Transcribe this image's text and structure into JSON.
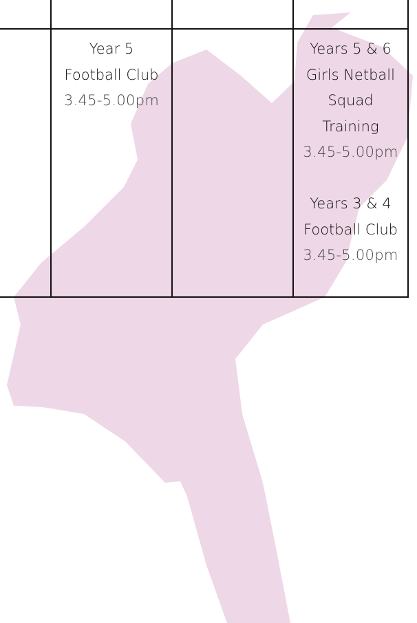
{
  "timetable": {
    "column_2": [
      {
        "lines": [
          "Year 5",
          "Football Club"
        ],
        "time": "3.45-5.00pm"
      }
    ],
    "column_4": [
      {
        "lines": [
          "Years 5 & 6",
          "Girls Netball",
          "Squad",
          "Training"
        ],
        "time": "3.45-5.00pm"
      },
      {
        "lines": [
          "Years 3 & 4",
          "Football Club"
        ],
        "time": "3.45-5.00pm"
      }
    ]
  }
}
